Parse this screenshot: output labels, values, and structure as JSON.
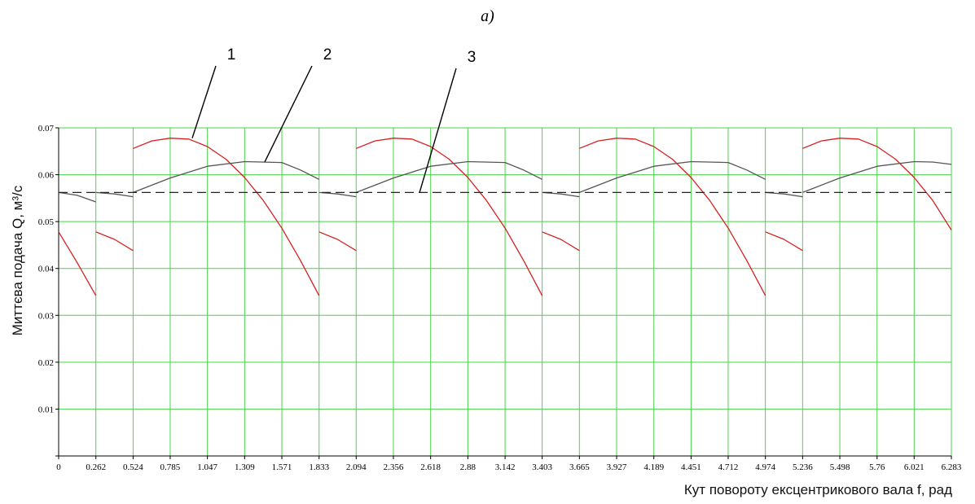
{
  "caption": "a)",
  "chart_data": {
    "type": "line",
    "title": "",
    "xlabel": "Кут повороту ексцентрикового вала f, рад",
    "ylabel": "Миттєва подача Q, м³/с",
    "xlim": [
      0,
      6.283
    ],
    "ylim": [
      0,
      0.07
    ],
    "grid": true,
    "x_ticks": [
      "0",
      "0.262",
      "0.524",
      "0.785",
      "1.047",
      "1.309",
      "1.571",
      "1.833",
      "2.094",
      "2.356",
      "2.618",
      "2.88",
      "3.142",
      "3.403",
      "3.665",
      "3.927",
      "4.189",
      "4.451",
      "4.712",
      "4.974",
      "5.236",
      "5.498",
      "5.76",
      "6.021",
      "6.283"
    ],
    "y_ticks": [
      "0",
      "0.01",
      "0.02",
      "0.03",
      "0.04",
      "0.05",
      "0.06",
      "0.07"
    ],
    "callout_labels": [
      "1",
      "2",
      "3"
    ],
    "series": [
      {
        "id": "1",
        "color": "#d62020",
        "segments": [
          [
            [
              0,
              0.0478
            ],
            [
              0.131,
              0.0412
            ],
            [
              0.262,
              0.0342
            ]
          ],
          [
            [
              0.262,
              0.0478
            ],
            [
              0.393,
              0.0462
            ],
            [
              0.524,
              0.0438
            ]
          ],
          [
            [
              0.524,
              0.0656
            ],
            [
              0.655,
              0.0672
            ],
            [
              0.785,
              0.0678
            ],
            [
              0.916,
              0.0676
            ],
            [
              1.047,
              0.066
            ],
            [
              1.178,
              0.0633
            ],
            [
              1.309,
              0.0594
            ],
            [
              1.44,
              0.0545
            ],
            [
              1.571,
              0.0486
            ],
            [
              1.702,
              0.0417
            ],
            [
              1.833,
              0.0342
            ]
          ],
          [
            [
              1.833,
              0.0478
            ],
            [
              1.963,
              0.0462
            ],
            [
              2.094,
              0.0438
            ]
          ],
          [
            [
              2.094,
              0.0656
            ],
            [
              2.225,
              0.0672
            ],
            [
              2.356,
              0.0678
            ],
            [
              2.487,
              0.0676
            ],
            [
              2.618,
              0.066
            ],
            [
              2.749,
              0.0633
            ],
            [
              2.88,
              0.0594
            ],
            [
              3.011,
              0.0545
            ],
            [
              3.142,
              0.0486
            ],
            [
              3.272,
              0.0417
            ],
            [
              3.403,
              0.0342
            ]
          ],
          [
            [
              3.403,
              0.0478
            ],
            [
              3.534,
              0.0462
            ],
            [
              3.665,
              0.0438
            ]
          ],
          [
            [
              3.665,
              0.0656
            ],
            [
              3.796,
              0.0672
            ],
            [
              3.927,
              0.0678
            ],
            [
              4.058,
              0.0676
            ],
            [
              4.189,
              0.066
            ],
            [
              4.32,
              0.0633
            ],
            [
              4.451,
              0.0594
            ],
            [
              4.582,
              0.0545
            ],
            [
              4.712,
              0.0486
            ],
            [
              4.843,
              0.0417
            ],
            [
              4.974,
              0.0342
            ]
          ],
          [
            [
              4.974,
              0.0478
            ],
            [
              5.105,
              0.0462
            ],
            [
              5.236,
              0.0438
            ]
          ],
          [
            [
              5.236,
              0.0656
            ],
            [
              5.367,
              0.0672
            ],
            [
              5.498,
              0.0678
            ],
            [
              5.629,
              0.0676
            ],
            [
              5.76,
              0.066
            ],
            [
              5.891,
              0.0633
            ],
            [
              6.021,
              0.0594
            ],
            [
              6.152,
              0.0545
            ],
            [
              6.283,
              0.0482
            ]
          ]
        ]
      },
      {
        "id": "2",
        "color": "#555555",
        "segments": [
          [
            [
              0,
              0.0562
            ],
            [
              0.131,
              0.0556
            ],
            [
              0.262,
              0.0542
            ]
          ],
          [
            [
              0.262,
              0.0562
            ],
            [
              0.393,
              0.0559
            ],
            [
              0.524,
              0.0553
            ]
          ],
          [
            [
              0.524,
              0.0562
            ],
            [
              0.785,
              0.0593
            ],
            [
              1.047,
              0.0618
            ],
            [
              1.309,
              0.0628
            ],
            [
              1.571,
              0.0626
            ],
            [
              1.702,
              0.061
            ],
            [
              1.833,
              0.059
            ]
          ],
          [
            [
              1.833,
              0.0562
            ],
            [
              1.963,
              0.0559
            ],
            [
              2.094,
              0.0553
            ]
          ],
          [
            [
              2.094,
              0.0562
            ],
            [
              2.356,
              0.0593
            ],
            [
              2.618,
              0.0618
            ],
            [
              2.88,
              0.0628
            ],
            [
              3.142,
              0.0626
            ],
            [
              3.272,
              0.061
            ],
            [
              3.403,
              0.059
            ]
          ],
          [
            [
              3.403,
              0.0562
            ],
            [
              3.534,
              0.0559
            ],
            [
              3.665,
              0.0553
            ]
          ],
          [
            [
              3.665,
              0.0562
            ],
            [
              3.927,
              0.0593
            ],
            [
              4.189,
              0.0618
            ],
            [
              4.451,
              0.0628
            ],
            [
              4.712,
              0.0626
            ],
            [
              4.843,
              0.061
            ],
            [
              4.974,
              0.059
            ]
          ],
          [
            [
              4.974,
              0.0562
            ],
            [
              5.105,
              0.0559
            ],
            [
              5.236,
              0.0553
            ]
          ],
          [
            [
              5.236,
              0.0562
            ],
            [
              5.498,
              0.0593
            ],
            [
              5.76,
              0.0618
            ],
            [
              6.021,
              0.0628
            ],
            [
              6.152,
              0.0627
            ],
            [
              6.283,
              0.0622
            ]
          ]
        ]
      },
      {
        "id": "3",
        "color": "#222222",
        "dashed": true,
        "segments": [
          [
            [
              0,
              0.0562
            ],
            [
              6.283,
              0.0562
            ]
          ]
        ]
      }
    ],
    "callouts": [
      {
        "label": "1",
        "point": [
          0.94,
          0.0678
        ]
      },
      {
        "label": "2",
        "point": [
          1.45,
          0.0627
        ]
      },
      {
        "label": "3",
        "point": [
          2.54,
          0.0562
        ]
      }
    ]
  }
}
